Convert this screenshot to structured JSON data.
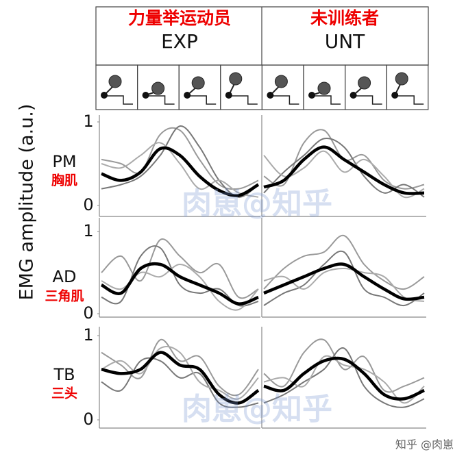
{
  "y_axis_label": "EMG amplitude (a.u.)",
  "columns": [
    {
      "title": "力量举运动员",
      "code": "EXP"
    },
    {
      "title": "未训练者",
      "code": "UNT"
    }
  ],
  "watermarks": [
    "肉崽@知乎",
    "肉崽@知乎"
  ],
  "credit": "知乎 @肉崽",
  "chart_data": [
    {
      "type": "line",
      "row_label": "PM",
      "row_label_cn": "胸肌",
      "ylim": [
        0,
        1
      ],
      "yticks": [
        0,
        1
      ],
      "categories": [
        null,
        null,
        null,
        null,
        null,
        null,
        null,
        null,
        null
      ],
      "series": [
        {
          "color": "#999999",
          "values": [
            0.55,
            0.5,
            0.4,
            0.85,
            0.9,
            0.55,
            0.25,
            0.2,
            0.3
          ]
        },
        {
          "color": "#777777",
          "values": [
            0.2,
            0.25,
            0.35,
            0.6,
            0.95,
            0.7,
            0.3,
            0.1,
            0.25
          ]
        },
        {
          "color": "#aaaaaa",
          "values": [
            0.5,
            0.45,
            0.6,
            0.75,
            0.5,
            0.2,
            0.3,
            0.15,
            0.1
          ]
        },
        {
          "color": "#000000",
          "values": [
            0.38,
            0.3,
            0.4,
            0.68,
            0.6,
            0.35,
            0.18,
            0.12,
            0.25
          ]
        }
      ]
    },
    {
      "type": "line",
      "ylim": [
        0,
        1
      ],
      "categories": [
        null,
        null,
        null,
        null,
        null,
        null,
        null,
        null,
        null
      ],
      "series": [
        {
          "color": "#999999",
          "values": [
            0.35,
            0.25,
            0.75,
            0.9,
            0.55,
            0.6,
            0.3,
            0.2,
            0.25
          ]
        },
        {
          "color": "#777777",
          "values": [
            0.15,
            0.4,
            0.6,
            0.8,
            0.7,
            0.35,
            0.15,
            0.25,
            0.1
          ]
        },
        {
          "color": "#aaaaaa",
          "values": [
            0.6,
            0.35,
            0.45,
            0.65,
            0.4,
            0.55,
            0.35,
            0.1,
            0.2
          ]
        },
        {
          "color": "#000000",
          "values": [
            0.22,
            0.3,
            0.55,
            0.7,
            0.55,
            0.4,
            0.25,
            0.15,
            0.15
          ]
        }
      ]
    },
    {
      "type": "line",
      "row_label": "AD",
      "row_label_cn": "三角肌",
      "ylim": [
        0,
        1
      ],
      "yticks": [
        0,
        1
      ],
      "categories": [
        null,
        null,
        null,
        null,
        null,
        null,
        null,
        null,
        null
      ],
      "series": [
        {
          "color": "#999999",
          "values": [
            0.5,
            0.7,
            0.4,
            0.9,
            0.7,
            0.5,
            0.6,
            0.2,
            0.3
          ]
        },
        {
          "color": "#777777",
          "values": [
            0.2,
            0.15,
            0.7,
            0.8,
            0.35,
            0.25,
            0.3,
            0.1,
            0.15
          ]
        },
        {
          "color": "#aaaaaa",
          "values": [
            0.4,
            0.3,
            0.5,
            0.45,
            0.6,
            0.45,
            0.15,
            0.05,
            0.3
          ]
        },
        {
          "color": "#000000",
          "values": [
            0.35,
            0.25,
            0.55,
            0.6,
            0.45,
            0.35,
            0.25,
            0.12,
            0.2
          ]
        }
      ]
    },
    {
      "type": "line",
      "ylim": [
        0,
        1
      ],
      "categories": [
        null,
        null,
        null,
        null,
        null,
        null,
        null,
        null,
        null
      ],
      "series": [
        {
          "color": "#999999",
          "values": [
            0.3,
            0.55,
            0.7,
            0.75,
            0.95,
            0.6,
            0.4,
            0.3,
            0.45
          ]
        },
        {
          "color": "#777777",
          "values": [
            0.1,
            0.25,
            0.35,
            0.6,
            0.75,
            0.3,
            0.2,
            0.1,
            0.25
          ]
        },
        {
          "color": "#aaaaaa",
          "values": [
            0.4,
            0.45,
            0.3,
            0.5,
            0.55,
            0.5,
            0.45,
            0.2,
            0.15
          ]
        },
        {
          "color": "#000000",
          "values": [
            0.25,
            0.35,
            0.45,
            0.55,
            0.6,
            0.45,
            0.3,
            0.18,
            0.2
          ]
        }
      ]
    },
    {
      "type": "line",
      "row_label": "TB",
      "row_label_cn": "三头",
      "ylim": [
        0,
        1
      ],
      "yticks": [
        0,
        1
      ],
      "categories": [
        null,
        null,
        null,
        null,
        null,
        null,
        null,
        null,
        null
      ],
      "series": [
        {
          "color": "#999999",
          "values": [
            0.8,
            0.65,
            0.5,
            0.95,
            0.7,
            0.75,
            0.4,
            0.3,
            0.6
          ]
        },
        {
          "color": "#777777",
          "values": [
            0.45,
            0.35,
            0.7,
            0.7,
            0.5,
            0.55,
            0.2,
            0.15,
            0.2
          ]
        },
        {
          "color": "#aaaaaa",
          "values": [
            0.6,
            0.7,
            0.55,
            0.85,
            0.8,
            0.45,
            0.35,
            0.25,
            0.5
          ]
        },
        {
          "color": "#000000",
          "values": [
            0.6,
            0.55,
            0.6,
            0.8,
            0.65,
            0.6,
            0.3,
            0.2,
            0.35
          ]
        }
      ]
    },
    {
      "type": "line",
      "ylim": [
        0,
        1
      ],
      "categories": [
        null,
        null,
        null,
        null,
        null,
        null,
        null,
        null,
        null
      ],
      "series": [
        {
          "color": "#999999",
          "values": [
            0.55,
            0.4,
            0.8,
            0.95,
            0.6,
            0.75,
            0.35,
            0.4,
            0.5
          ]
        },
        {
          "color": "#777777",
          "values": [
            0.2,
            0.3,
            0.45,
            0.6,
            0.85,
            0.4,
            0.2,
            0.15,
            0.25
          ]
        },
        {
          "color": "#aaaaaa",
          "values": [
            0.45,
            0.5,
            0.4,
            0.75,
            0.65,
            0.6,
            0.45,
            0.2,
            0.4
          ]
        },
        {
          "color": "#000000",
          "values": [
            0.4,
            0.35,
            0.55,
            0.7,
            0.72,
            0.55,
            0.3,
            0.25,
            0.35
          ]
        }
      ]
    }
  ]
}
